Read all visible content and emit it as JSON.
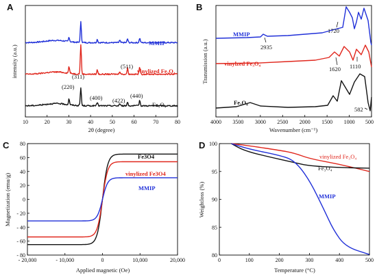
{
  "colors": {
    "black": "#111111",
    "red": "#e0261c",
    "blue": "#1f2fd8"
  },
  "chart_data": [
    {
      "panel": "A",
      "type": "line",
      "xlabel": "2θ (degree)",
      "ylabel": "intensity (a.u.)",
      "xlim": [
        10,
        80
      ],
      "xticks": [
        10,
        20,
        30,
        40,
        50,
        60,
        70,
        80
      ],
      "grid": false,
      "series": [
        {
          "name": "MMIP",
          "color": "#1f2fd8",
          "offset": 2.0,
          "peaks": [
            [
              30.1,
              0.12
            ],
            [
              35.5,
              0.55
            ],
            [
              43.1,
              0.09
            ],
            [
              53.4,
              0.06
            ],
            [
              57.0,
              0.1
            ],
            [
              62.6,
              0.12
            ]
          ]
        },
        {
          "name": "vinylized Fe₃O₄",
          "color": "#e0261c",
          "offset": 1.15,
          "peaks": [
            [
              30.1,
              0.18
            ],
            [
              35.5,
              0.8
            ],
            [
              43.1,
              0.12
            ],
            [
              53.4,
              0.08
            ],
            [
              57.0,
              0.16
            ],
            [
              62.6,
              0.2
            ]
          ]
        },
        {
          "name": "Fe₃O₄",
          "color": "#111111",
          "offset": 0.3,
          "peaks": [
            [
              30.1,
              0.16
            ],
            [
              35.5,
              0.48
            ],
            [
              43.1,
              0.1
            ],
            [
              53.4,
              0.06
            ],
            [
              57.0,
              0.1
            ],
            [
              62.6,
              0.15
            ]
          ]
        }
      ],
      "annotations": [
        "(220)",
        "(311)",
        "(400)",
        "(422)",
        "(511)",
        "(440)"
      ]
    },
    {
      "panel": "B",
      "type": "line",
      "xlabel": "Wavenumber (cm⁻¹)",
      "ylabel": "Transmission (a.u.)",
      "xlim": [
        4000,
        500
      ],
      "xticks": [
        4000,
        3500,
        3000,
        2500,
        2000,
        1500,
        1000,
        500
      ],
      "grid": false,
      "series": [
        {
          "name": "MMIP",
          "color": "#1f2fd8"
        },
        {
          "name": "vinylzed Fe₃O₄",
          "color": "#e0261c"
        },
        {
          "name": "Fe₃O₄",
          "color": "#111111"
        }
      ],
      "annotations": [
        "2935",
        "1720",
        "1620",
        "1110",
        "582"
      ]
    },
    {
      "panel": "C",
      "type": "line",
      "xlabel": "Applied magnetic (Oe)",
      "ylabel": "Magnetization (emu/g)",
      "xlim": [
        -20000,
        20000
      ],
      "ylim": [
        -80,
        80
      ],
      "xticks": [
        -20000,
        -10000,
        0,
        10000,
        20000
      ],
      "xtick_labels": [
        "- 20,000",
        "- 10,000",
        "0",
        "10,000",
        "20,000"
      ],
      "yticks": [
        -80,
        -60,
        -40,
        -20,
        0,
        20,
        40,
        60,
        80
      ],
      "grid": false,
      "legend": "right",
      "series": [
        {
          "name": "Fe3O4",
          "color": "#111111",
          "saturation": 65
        },
        {
          "name": "vinylized Fe3O4",
          "color": "#e0261c",
          "saturation": 54
        },
        {
          "name": "MMIP",
          "color": "#1f2fd8",
          "saturation": 31
        }
      ]
    },
    {
      "panel": "D",
      "type": "line",
      "xlabel": "Temperature (°C)",
      "ylabel": "Weightloss (%)",
      "xlim": [
        0,
        500
      ],
      "ylim": [
        80,
        100
      ],
      "xticks": [
        0,
        100,
        200,
        300,
        400,
        500
      ],
      "yticks": [
        80,
        85,
        90,
        95,
        100
      ],
      "grid": false,
      "series": [
        {
          "name": "vinylized Fe₃O₄",
          "color": "#e0261c",
          "points": [
            [
              40,
              100
            ],
            [
              100,
              99.6
            ],
            [
              200,
              98.8
            ],
            [
              250,
              98.3
            ],
            [
              300,
              97.3
            ],
            [
              400,
              96.3
            ],
            [
              500,
              95.0
            ]
          ]
        },
        {
          "name": "Fe₃O₄",
          "color": "#111111",
          "points": [
            [
              40,
              100
            ],
            [
              80,
              98.8
            ],
            [
              150,
              97.8
            ],
            [
              250,
              96.6
            ],
            [
              300,
              96.0
            ],
            [
              400,
              95.7
            ],
            [
              500,
              95.6
            ]
          ]
        },
        {
          "name": "MMIP",
          "color": "#1f2fd8",
          "points": [
            [
              40,
              100
            ],
            [
              100,
              99.0
            ],
            [
              200,
              97.9
            ],
            [
              250,
              97.0
            ],
            [
              300,
              93.5
            ],
            [
              350,
              88.0
            ],
            [
              380,
              84.5
            ],
            [
              420,
              81.5
            ],
            [
              500,
              80.1
            ]
          ]
        }
      ]
    }
  ],
  "panels": {
    "A": {
      "label": "A",
      "xlabel": "2θ (degree)",
      "ylabel": "intensity (a.u.)",
      "legend_mmip": "MMIP",
      "legend_vinyl": "vinylized Fe₃O₄",
      "legend_fe": "Fe₃O₄",
      "a220": "(220)",
      "a311": "(311)",
      "a400": "(400)",
      "a422": "(422)",
      "a511": "(511)",
      "a440": "(440)",
      "ticks": [
        "10",
        "20",
        "30",
        "40",
        "50",
        "60",
        "70",
        "80"
      ]
    },
    "B": {
      "label": "B",
      "xlabel": "Wavenumber (cm⁻¹)",
      "ylabel": "Transmission (a.u.)",
      "legend_mmip": "MMIP",
      "legend_vinyl": "vinylzed Fe₃O₄",
      "legend_fe": "Fe₃O₄",
      "a2935": "2935",
      "a1720": "1720",
      "a1620": "1620",
      "a1110": "1110",
      "a582": "582",
      "ticks": [
        "4000",
        "3500",
        "3000",
        "2500",
        "2000",
        "1500",
        "1000",
        "500"
      ]
    },
    "C": {
      "label": "C",
      "xlabel": "Applied magnetic (Oe)",
      "ylabel": "Magnetization (emu/g)",
      "legend_fe": "Fe3O4",
      "legend_vinyl": "vinylized Fe3O4",
      "legend_mmip": "MMIP",
      "xticks": [
        "- 20,000",
        "- 10,000",
        "0",
        "10,000",
        "20,000"
      ],
      "yticks": [
        "80",
        "60",
        "40",
        "20",
        "0",
        "- 20",
        "- 40",
        "- 60",
        "- 80"
      ]
    },
    "D": {
      "label": "D",
      "xlabel": "Temperature (°C)",
      "ylabel": "Weightloss (%)",
      "legend_vinyl": "vinylized Fe₃O₄",
      "legend_fe": "Fe₃O₄",
      "legend_mmip": "MMIP",
      "xticks": [
        "0",
        "100",
        "200",
        "300",
        "400",
        "500"
      ],
      "yticks": [
        "100",
        "95",
        "90",
        "85",
        "80"
      ]
    }
  }
}
